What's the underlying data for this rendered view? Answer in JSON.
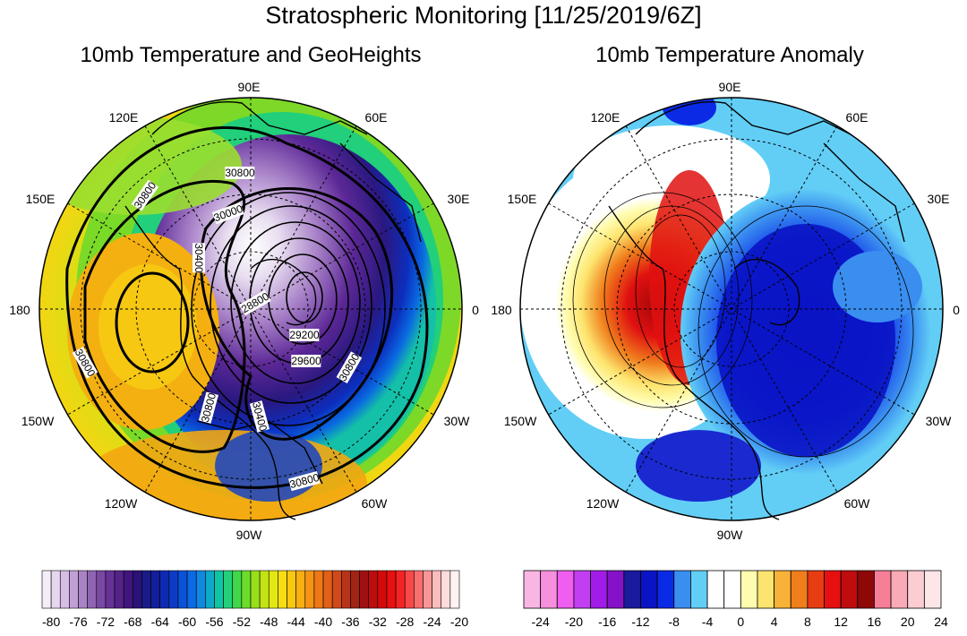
{
  "title": "Stratospheric Monitoring [11/25/2019/6Z]",
  "left_panel": {
    "title": "10mb Temperature and GeoHeights",
    "contour_labels": [
      "30800",
      "30800",
      "30000",
      "30400",
      "28800",
      "29200",
      "29600",
      "30800",
      "30800",
      "30400",
      "30800",
      "30800"
    ]
  },
  "right_panel": {
    "title": "10mb Temperature Anomaly"
  },
  "longitude_labels": {
    "top": "90E",
    "top_left": "120E",
    "top_right": "60E",
    "left_upper": "150E",
    "right_upper": "30E",
    "left": "180",
    "right": "0",
    "left_lower": "150W",
    "right_lower": "30W",
    "bottom_left": "120W",
    "bottom_right": "60W",
    "bottom": "90W"
  },
  "left_colorbar": {
    "tick_labels": [
      "-80",
      "-76",
      "-72",
      "-68",
      "-64",
      "-60",
      "-56",
      "-52",
      "-48",
      "-44",
      "-40",
      "-36",
      "-32",
      "-28",
      "-24",
      "-20"
    ],
    "colors": [
      "#f4eef8",
      "#e6d6ee",
      "#d5bde3",
      "#c2a0d6",
      "#a983c6",
      "#8f64b4",
      "#7a48a3",
      "#663296",
      "#55228a",
      "#40167e",
      "#2a1278",
      "#1a1a88",
      "#121e9c",
      "#0e2ab2",
      "#0c3cc6",
      "#0a52d8",
      "#0c6ae4",
      "#1088e0",
      "#0ea8c8",
      "#10c4a4",
      "#22d07a",
      "#40d848",
      "#6cdc2c",
      "#98e01c",
      "#c2e414",
      "#e4e812",
      "#f6de10",
      "#fac810",
      "#f9ae12",
      "#f59314",
      "#ee7816",
      "#e26017",
      "#cf4a18",
      "#b83418",
      "#a22414",
      "#a01010",
      "#bc0c0c",
      "#d40a0a",
      "#e81010",
      "#f42424",
      "#f84848",
      "#f96e6e",
      "#fa9696",
      "#fbbcbc",
      "#fcdcdc",
      "#fef2f2"
    ]
  },
  "right_colorbar": {
    "tick_labels": [
      "-24",
      "-20",
      "-16",
      "-12",
      "-8",
      "-4",
      "0",
      "4",
      "8",
      "12",
      "16",
      "20",
      "24"
    ],
    "colors": [
      "#f9b6e4",
      "#f68fdc",
      "#ef5ef0",
      "#c13ef2",
      "#a21ce8",
      "#8512c8",
      "#1a1a9c",
      "#0a14c4",
      "#0a2ae6",
      "#3a8ef0",
      "#62cef6",
      "#ffffff",
      "#ffffff",
      "#fffcaf",
      "#fde46e",
      "#f9b238",
      "#f07e1c",
      "#e83c12",
      "#e61010",
      "#c00c0c",
      "#8e0808",
      "#f77e96",
      "#f9aab6",
      "#fbccd2",
      "#fde6e8"
    ]
  }
}
